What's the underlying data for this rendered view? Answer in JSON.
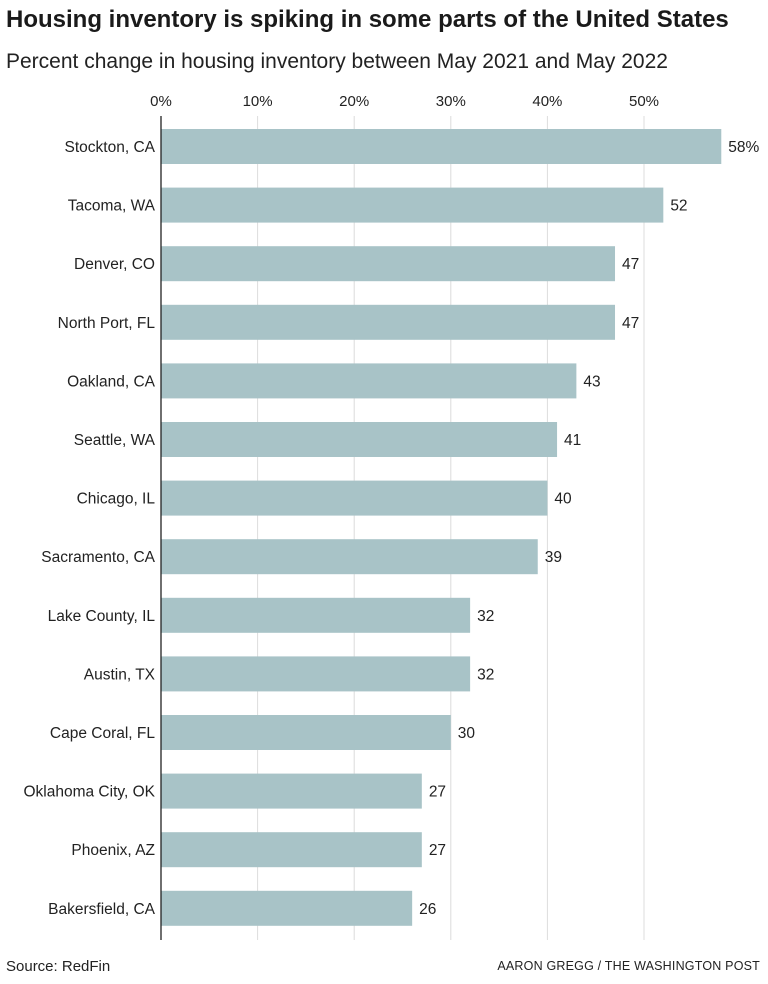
{
  "chart_data": {
    "type": "bar",
    "orientation": "horizontal",
    "title": "Housing inventory is spiking in some parts of the United States",
    "subtitle": "Percent change in housing inventory between May 2021 and May 2022",
    "xlim": [
      0,
      58
    ],
    "x_ticks": [
      0,
      10,
      20,
      30,
      40,
      50
    ],
    "x_tick_labels": [
      "0%",
      "10%",
      "20%",
      "30%",
      "40%",
      "50%"
    ],
    "grid": "vertical",
    "categories": [
      "Stockton, CA",
      "Tacoma, WA",
      "Denver, CO",
      "North Port, FL",
      "Oakland, CA",
      "Seattle, WA",
      "Chicago, IL",
      "Sacramento, CA",
      "Lake County, IL",
      "Austin, TX",
      "Cape Coral, FL",
      "Oklahoma City, OK",
      "Phoenix, AZ",
      "Bakersfield, CA"
    ],
    "values": [
      58,
      52,
      47,
      47,
      43,
      41,
      40,
      39,
      32,
      32,
      30,
      27,
      27,
      26
    ],
    "value_labels": [
      "58%",
      "52",
      "47",
      "47",
      "43",
      "41",
      "40",
      "39",
      "32",
      "32",
      "30",
      "27",
      "27",
      "26"
    ],
    "bar_color": "#a8c3c7"
  },
  "footer": {
    "source": "Source: RedFin",
    "credit": "AARON GREGG / THE WASHINGTON POST"
  }
}
